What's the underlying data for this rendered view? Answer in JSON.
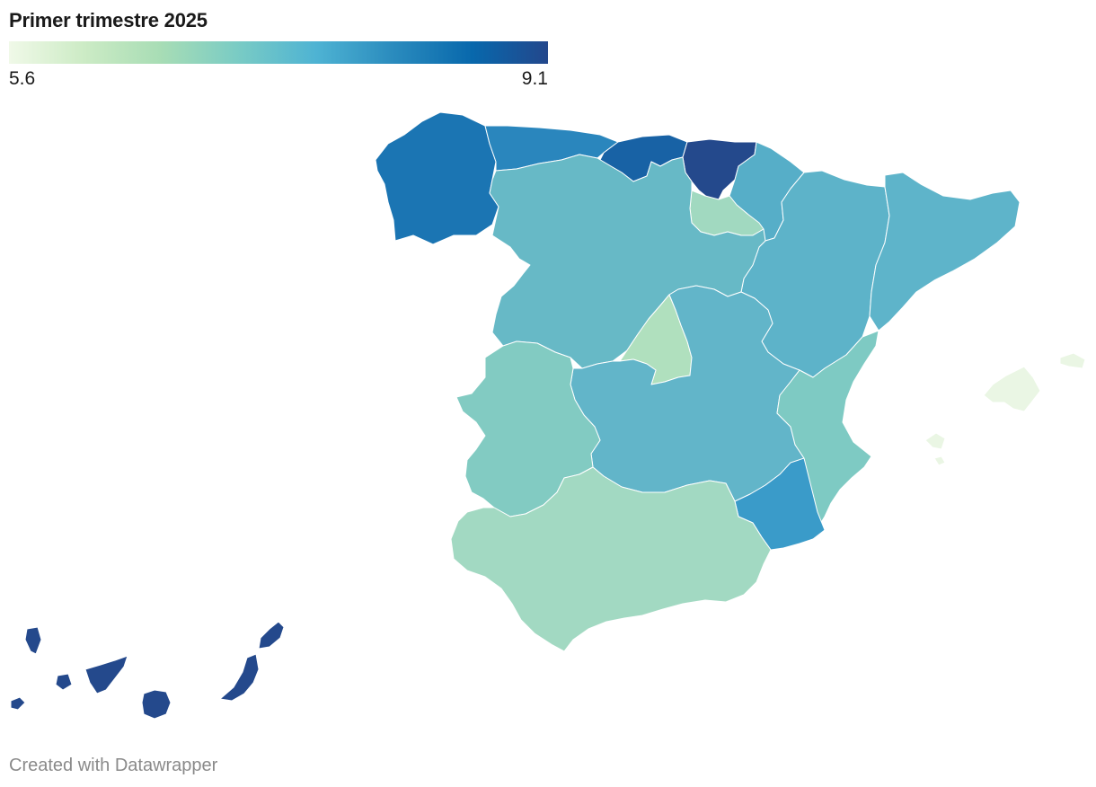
{
  "title": "Primer trimestre 2025",
  "legend": {
    "min_label": "5.6",
    "max_label": "9.1",
    "min": 5.6,
    "max": 9.1,
    "gradient_colors": [
      "#f0f9e8",
      "#ccebc5",
      "#a8ddb5",
      "#7bccc4",
      "#4eb3d3",
      "#2b8cbe",
      "#0868ac",
      "#23478c"
    ]
  },
  "footer": "Created with Datawrapper",
  "regions": [
    {
      "id": "galicia",
      "color": "#1b75b3"
    },
    {
      "id": "asturias",
      "color": "#2a86bd"
    },
    {
      "id": "cantabria",
      "color": "#1862a5"
    },
    {
      "id": "pais-vasco",
      "color": "#24498c"
    },
    {
      "id": "navarra",
      "color": "#56aec8"
    },
    {
      "id": "la-rioja",
      "color": "#a1d9c0"
    },
    {
      "id": "aragon",
      "color": "#5db3c9"
    },
    {
      "id": "cataluna",
      "color": "#5eb4ca"
    },
    {
      "id": "castilla-y-leon",
      "color": "#67b9c6"
    },
    {
      "id": "madrid",
      "color": "#b0e0be"
    },
    {
      "id": "castilla-la-mancha",
      "color": "#62b5c9"
    },
    {
      "id": "extremadura",
      "color": "#82cbc2"
    },
    {
      "id": "comunitat-valenciana",
      "color": "#7ecac3"
    },
    {
      "id": "murcia",
      "color": "#3a9bc9"
    },
    {
      "id": "andalucia",
      "color": "#a2d9c2"
    },
    {
      "id": "islas-baleares",
      "color": "#eaf6e4"
    },
    {
      "id": "canarias",
      "color": "#24498c"
    }
  ]
}
